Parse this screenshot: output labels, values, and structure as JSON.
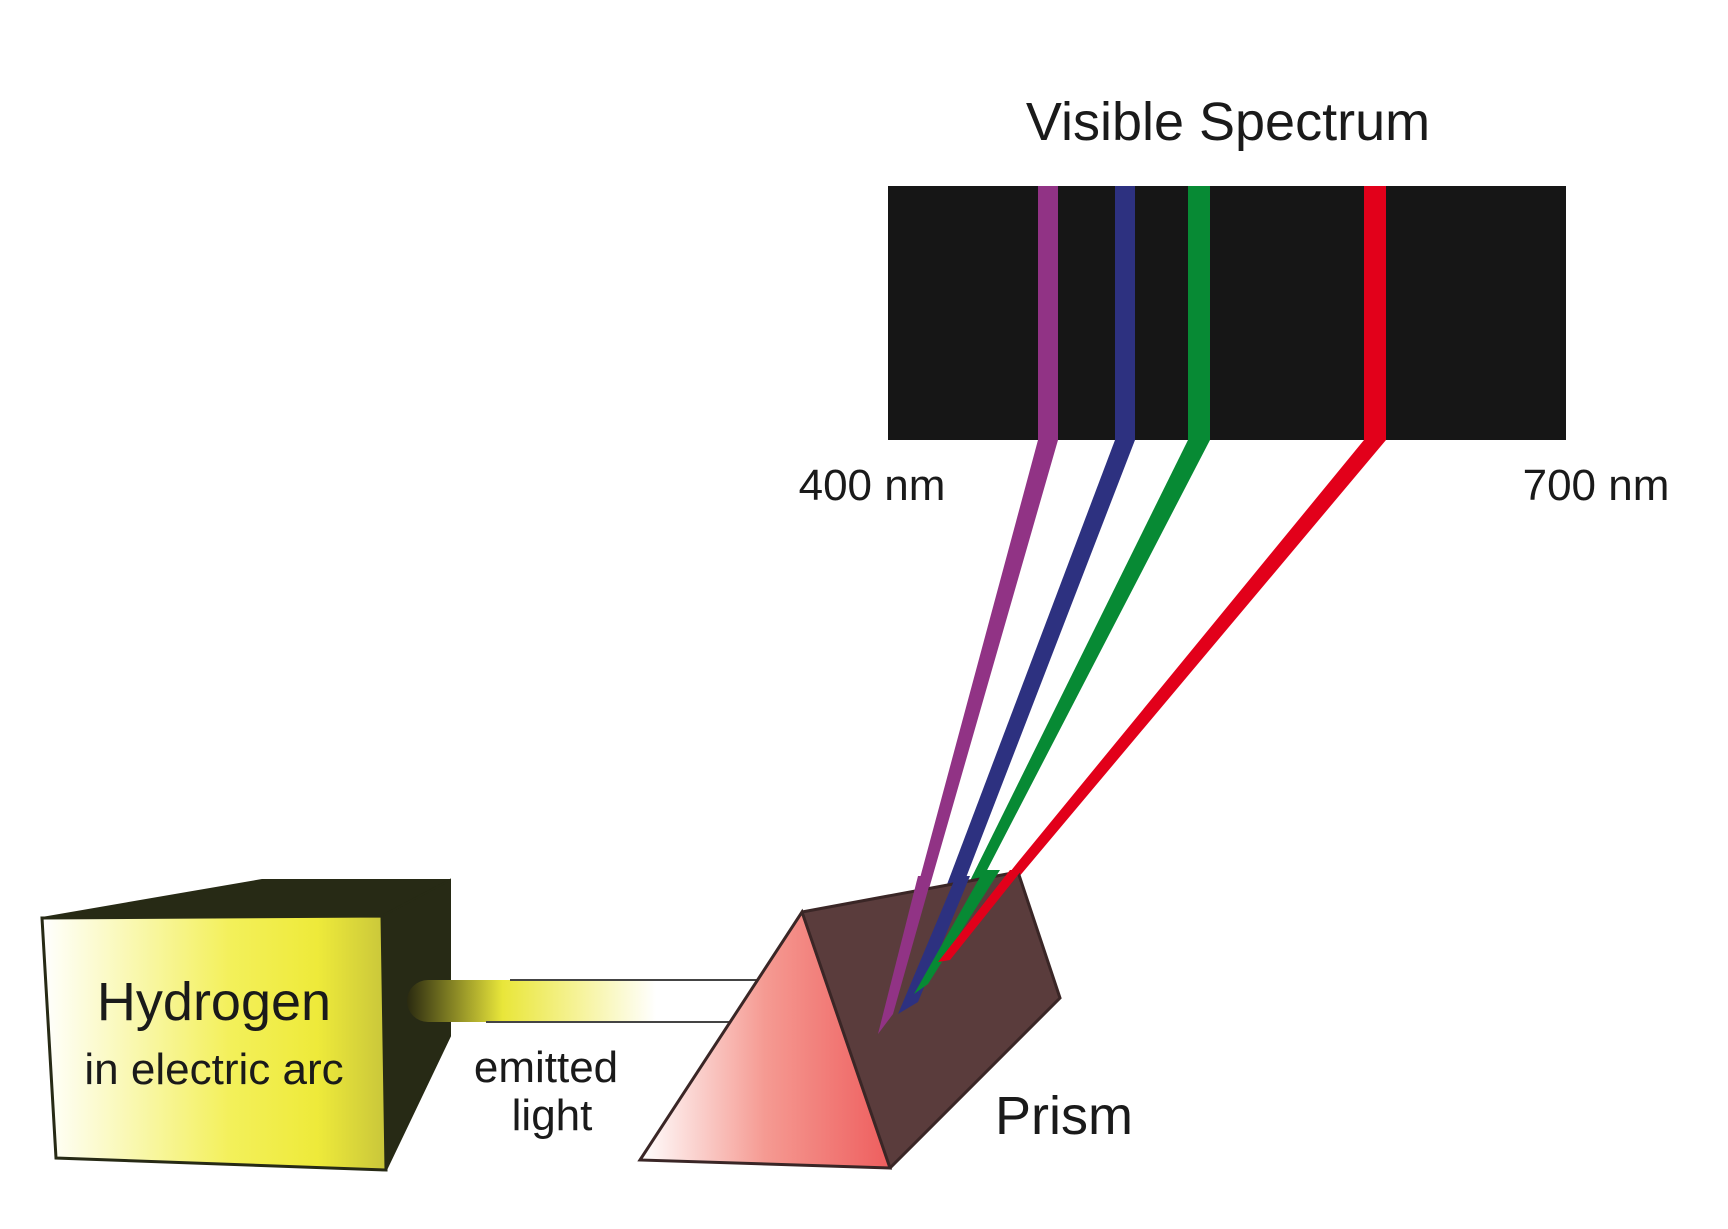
{
  "spectrum": {
    "title": "Visible Spectrum",
    "left_label": "400 nm",
    "right_label": "700 nm",
    "lines": [
      {
        "name": "violet",
        "color": "#913385"
      },
      {
        "name": "blue",
        "color": "#2d3180"
      },
      {
        "name": "green",
        "color": "#078a34"
      },
      {
        "name": "red",
        "color": "#e2001a"
      }
    ]
  },
  "source": {
    "line1": "Hydrogen",
    "line2": "in electric arc",
    "face_color": "#f1ee3e",
    "body_color": "#272a15"
  },
  "beam": {
    "line1": "emitted",
    "line2": "light"
  },
  "prism": {
    "label": "Prism",
    "face_color": "#ee5e5e",
    "body_color": "#5a3c3c"
  }
}
